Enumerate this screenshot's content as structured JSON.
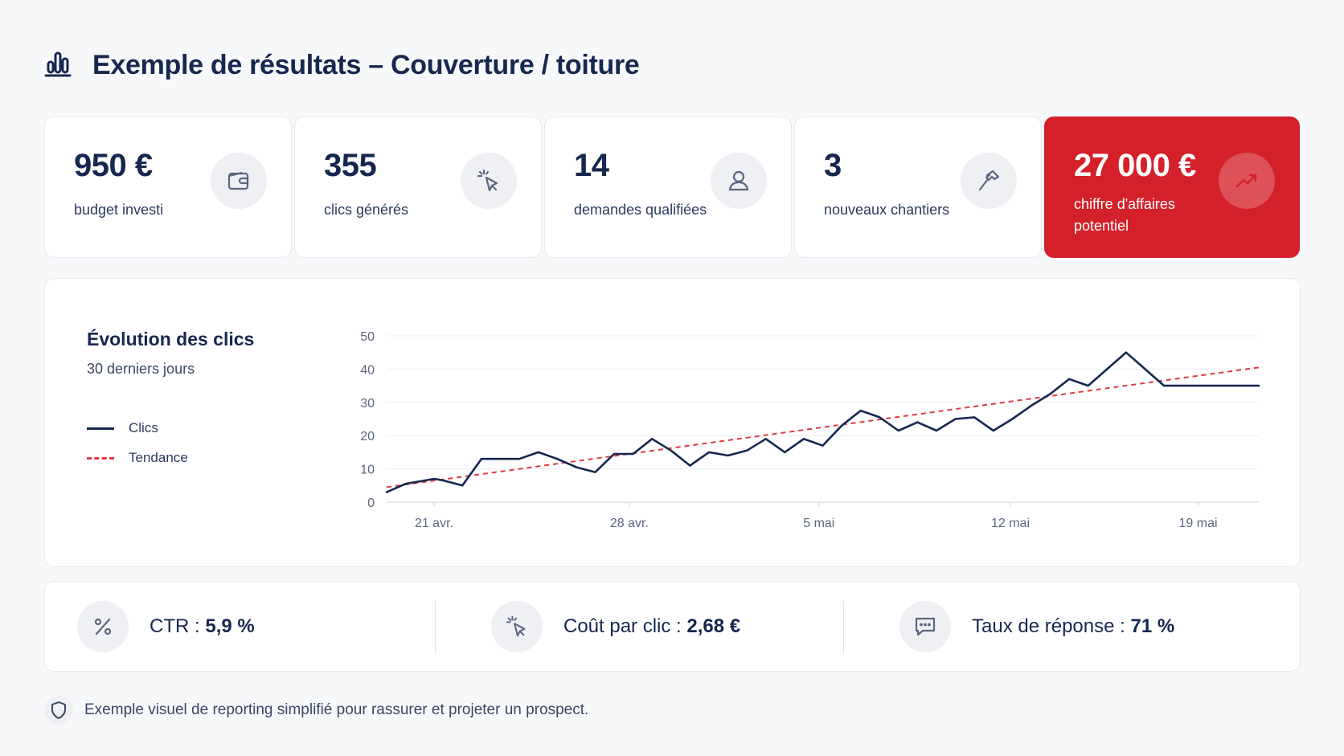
{
  "header": {
    "title": "Exemple de résultats – Couverture / toiture",
    "icon": "bar-chart-icon"
  },
  "kpis": [
    {
      "value": "950 €",
      "label": "budget investi",
      "icon": "wallet-icon"
    },
    {
      "value": "355",
      "label": "clics générés",
      "icon": "cursor-click-icon"
    },
    {
      "value": "14",
      "label": "demandes qualifiées",
      "icon": "user-icon"
    },
    {
      "value": "3",
      "label": "nouveaux chantiers",
      "icon": "hammer-icon"
    },
    {
      "value": "27 000 €",
      "label": "chiffre d'affaires potentiel",
      "icon": "trending-up-icon"
    }
  ],
  "colors": {
    "navy": "#16284f",
    "accent": "#d4202a",
    "trend": "#e0393f"
  },
  "chart": {
    "title": "Évolution des clics",
    "subtitle": "30 derniers jours",
    "legend": {
      "clicks": "Clics",
      "trend": "Tendance"
    }
  },
  "chart_data": {
    "type": "line",
    "title": "Évolution des clics",
    "subtitle": "30 derniers jours",
    "ylim": [
      0,
      50
    ],
    "yticks": [
      "0",
      "10",
      "20",
      "30",
      "40",
      "50"
    ],
    "xticks": [
      {
        "label": "21 avr.",
        "x": 2.5
      },
      {
        "label": "28 avr.",
        "x": 12.8
      },
      {
        "label": "5 mai",
        "x": 22.8
      },
      {
        "label": "12 mai",
        "x": 32.9
      },
      {
        "label": "19 mai",
        "x": 42.8
      }
    ],
    "grid": true,
    "legend_position": "left",
    "series": [
      {
        "name": "Clics",
        "x": [
          0,
          1,
          2,
          2.5,
          3,
          4,
          5,
          6,
          7,
          8,
          9,
          10,
          11,
          12,
          13,
          14,
          15,
          16,
          17,
          18,
          19,
          20,
          21,
          22,
          23,
          24,
          25,
          26,
          27,
          28,
          29,
          30,
          31,
          32,
          33,
          34,
          35,
          36,
          37,
          38,
          39,
          40,
          41,
          42,
          43,
          44,
          45,
          46
        ],
        "values": [
          3,
          5.5,
          6.5,
          7,
          6.5,
          5,
          13,
          13,
          13,
          15,
          13,
          10.5,
          9,
          14.5,
          14.5,
          19,
          15.5,
          11,
          15,
          14,
          15.5,
          19,
          15,
          19,
          17,
          23,
          27.5,
          25.5,
          21.5,
          24,
          21.5,
          25,
          25.5,
          21.5,
          25,
          29,
          32.5,
          37,
          35,
          40,
          45,
          40,
          35,
          35,
          35,
          35,
          35,
          35
        ]
      },
      {
        "name": "Tendance",
        "x": [
          0,
          46
        ],
        "values": [
          4.5,
          40.5
        ]
      }
    ]
  },
  "metrics": [
    {
      "label": "CTR :",
      "value": "5,9 %",
      "icon": "percent-icon"
    },
    {
      "label": "Coût par clic :",
      "value": "2,68 €",
      "icon": "cursor-click-icon"
    },
    {
      "label": "Taux de réponse :",
      "value": "71 %",
      "icon": "message-icon"
    }
  ],
  "footer": {
    "text": "Exemple visuel de reporting simplifié pour rassurer et projeter un prospect.",
    "icon": "shield-icon"
  }
}
